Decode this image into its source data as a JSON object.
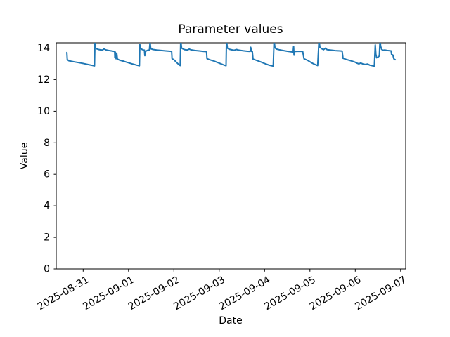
{
  "figure": {
    "background": "#ffffff"
  },
  "chart_data": {
    "type": "line",
    "title": "Parameter values",
    "xlabel": "Date",
    "ylabel": "Value",
    "grid": false,
    "legend": null,
    "line_color": "#1f77b4",
    "line_width": 2,
    "ylim": [
      0,
      14.34
    ],
    "y_ticks": [
      0,
      2,
      4,
      6,
      8,
      10,
      12,
      14
    ],
    "y_tick_labels": [
      "0",
      "2",
      "4",
      "6",
      "8",
      "10",
      "12",
      "14"
    ],
    "x_tick_labels": [
      "2025-08-31",
      "2025-09-01",
      "2025-09-02",
      "2025-09-03",
      "2025-09-04",
      "2025-09-05",
      "2025-09-06",
      "2025-09-07"
    ],
    "x_tick_days": [
      0,
      1,
      2,
      3,
      4,
      5,
      6,
      7
    ],
    "xlim_days_from_2025_08_31": [
      -0.594,
      7.113
    ],
    "points_day_value": [
      [
        -0.36,
        13.72
      ],
      [
        -0.35,
        13.28
      ],
      [
        -0.32,
        13.2
      ],
      [
        -0.26,
        13.16
      ],
      [
        -0.18,
        13.12
      ],
      [
        -0.08,
        13.07
      ],
      [
        0.02,
        13.01
      ],
      [
        0.12,
        12.95
      ],
      [
        0.2,
        12.9
      ],
      [
        0.25,
        12.87
      ],
      [
        0.26,
        14.5
      ],
      [
        0.275,
        14.02
      ],
      [
        0.3,
        13.95
      ],
      [
        0.34,
        13.91
      ],
      [
        0.38,
        13.89
      ],
      [
        0.43,
        13.88
      ],
      [
        0.46,
        13.96
      ],
      [
        0.49,
        13.9
      ],
      [
        0.54,
        13.86
      ],
      [
        0.6,
        13.83
      ],
      [
        0.67,
        13.8
      ],
      [
        0.695,
        13.78
      ],
      [
        0.7,
        13.4
      ],
      [
        0.71,
        13.74
      ],
      [
        0.725,
        13.32
      ],
      [
        0.74,
        13.68
      ],
      [
        0.755,
        13.3
      ],
      [
        0.8,
        13.24
      ],
      [
        0.9,
        13.16
      ],
      [
        1.0,
        13.07
      ],
      [
        1.1,
        12.98
      ],
      [
        1.18,
        12.92
      ],
      [
        1.24,
        12.88
      ],
      [
        1.25,
        14.22
      ],
      [
        1.27,
        13.97
      ],
      [
        1.3,
        13.91
      ],
      [
        1.33,
        13.88
      ],
      [
        1.35,
        13.87
      ],
      [
        1.36,
        13.52
      ],
      [
        1.38,
        13.8
      ],
      [
        1.42,
        13.86
      ],
      [
        1.46,
        13.88
      ],
      [
        1.475,
        14.38
      ],
      [
        1.49,
        13.96
      ],
      [
        1.54,
        13.91
      ],
      [
        1.62,
        13.88
      ],
      [
        1.72,
        13.85
      ],
      [
        1.82,
        13.82
      ],
      [
        1.92,
        13.8
      ],
      [
        1.95,
        13.79
      ],
      [
        1.96,
        13.33
      ],
      [
        2.0,
        13.26
      ],
      [
        2.05,
        13.12
      ],
      [
        2.1,
        12.97
      ],
      [
        2.14,
        12.89
      ],
      [
        2.15,
        14.5
      ],
      [
        2.17,
        14.0
      ],
      [
        2.2,
        13.95
      ],
      [
        2.24,
        13.9
      ],
      [
        2.3,
        13.88
      ],
      [
        2.34,
        13.94
      ],
      [
        2.38,
        13.89
      ],
      [
        2.46,
        13.85
      ],
      [
        2.56,
        13.82
      ],
      [
        2.66,
        13.79
      ],
      [
        2.72,
        13.78
      ],
      [
        2.73,
        13.33
      ],
      [
        2.78,
        13.27
      ],
      [
        2.88,
        13.18
      ],
      [
        2.98,
        13.07
      ],
      [
        3.08,
        12.95
      ],
      [
        3.15,
        12.88
      ],
      [
        3.16,
        14.5
      ],
      [
        3.18,
        14.0
      ],
      [
        3.22,
        13.93
      ],
      [
        3.28,
        13.89
      ],
      [
        3.33,
        13.86
      ],
      [
        3.38,
        13.91
      ],
      [
        3.43,
        13.87
      ],
      [
        3.52,
        13.83
      ],
      [
        3.62,
        13.8
      ],
      [
        3.68,
        13.79
      ],
      [
        3.695,
        14.05
      ],
      [
        3.71,
        13.79
      ],
      [
        3.73,
        13.78
      ],
      [
        3.745,
        13.3
      ],
      [
        3.82,
        13.22
      ],
      [
        3.92,
        13.12
      ],
      [
        4.02,
        13.0
      ],
      [
        4.12,
        12.9
      ],
      [
        4.19,
        12.86
      ],
      [
        4.21,
        14.5
      ],
      [
        4.23,
        14.02
      ],
      [
        4.26,
        13.94
      ],
      [
        4.32,
        13.9
      ],
      [
        4.4,
        13.85
      ],
      [
        4.5,
        13.8
      ],
      [
        4.6,
        13.76
      ],
      [
        4.63,
        13.75
      ],
      [
        4.64,
        14.1
      ],
      [
        4.65,
        13.55
      ],
      [
        4.66,
        13.78
      ],
      [
        4.74,
        13.8
      ],
      [
        4.84,
        13.79
      ],
      [
        4.87,
        13.32
      ],
      [
        4.95,
        13.22
      ],
      [
        5.03,
        13.08
      ],
      [
        5.1,
        12.97
      ],
      [
        5.17,
        12.89
      ],
      [
        5.2,
        14.5
      ],
      [
        5.22,
        14.05
      ],
      [
        5.26,
        13.96
      ],
      [
        5.3,
        13.9
      ],
      [
        5.34,
        13.99
      ],
      [
        5.38,
        13.9
      ],
      [
        5.46,
        13.87
      ],
      [
        5.56,
        13.84
      ],
      [
        5.66,
        13.82
      ],
      [
        5.71,
        13.81
      ],
      [
        5.73,
        13.35
      ],
      [
        5.8,
        13.28
      ],
      [
        5.9,
        13.2
      ],
      [
        6.0,
        13.1
      ],
      [
        6.04,
        13.04
      ],
      [
        6.08,
        13.0
      ],
      [
        6.12,
        13.05
      ],
      [
        6.17,
        12.99
      ],
      [
        6.22,
        12.96
      ],
      [
        6.27,
        12.99
      ],
      [
        6.32,
        12.92
      ],
      [
        6.38,
        12.88
      ],
      [
        6.42,
        12.86
      ],
      [
        6.44,
        14.2
      ],
      [
        6.455,
        13.62
      ],
      [
        6.47,
        13.38
      ],
      [
        6.5,
        13.42
      ],
      [
        6.53,
        13.5
      ],
      [
        6.545,
        14.5
      ],
      [
        6.56,
        14.12
      ],
      [
        6.58,
        13.92
      ],
      [
        6.61,
        13.86
      ],
      [
        6.65,
        13.88
      ],
      [
        6.7,
        13.85
      ],
      [
        6.76,
        13.83
      ],
      [
        6.79,
        13.82
      ],
      [
        6.8,
        13.6
      ],
      [
        6.83,
        13.56
      ],
      [
        6.85,
        13.32
      ],
      [
        6.88,
        13.26
      ]
    ]
  }
}
